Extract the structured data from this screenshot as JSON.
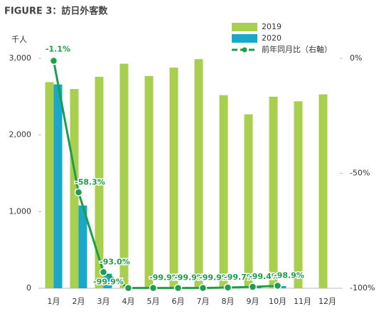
{
  "chart_data": {
    "type": "bar",
    "title": "FIGURE 3：訪日外客数",
    "y_label": "千人",
    "categories": [
      "1月",
      "2月",
      "3月",
      "4月",
      "5月",
      "6月",
      "7月",
      "8月",
      "9月",
      "10月",
      "11月",
      "12月"
    ],
    "series": [
      {
        "name": "2019",
        "color": "#a9cf4f",
        "values": [
          2690,
          2600,
          2760,
          2930,
          2770,
          2880,
          2990,
          2520,
          2270,
          2500,
          2440,
          2530
        ]
      },
      {
        "name": "2020",
        "color": "#1aa7c9",
        "values": [
          2660,
          1080,
          190,
          3,
          2,
          3,
          4,
          9,
          14,
          28,
          null,
          null
        ]
      },
      {
        "name": "前年同月比（右軸）",
        "type": "line",
        "axis": "y2",
        "color": "#1e9d4b",
        "values": [
          -1.1,
          -58.3,
          -93.0,
          -99.9,
          -99.9,
          -99.9,
          -99.9,
          -99.7,
          -99.4,
          -98.9,
          null,
          null
        ],
        "value_labels": [
          "-1.1%",
          "-58.3%",
          "-93.0%",
          "-99.9%",
          "-99.9%",
          "-99.9%",
          "-99.9%",
          "-99.7%",
          "-99.4%",
          "-98.9%",
          null,
          null
        ]
      }
    ],
    "ylim": [
      0,
      3000
    ],
    "yticks": [
      0,
      {
        "value": 1000,
        "label": "1,000"
      },
      {
        "value": 2000,
        "label": "2,000"
      },
      {
        "value": 3000,
        "label": "3,000"
      }
    ],
    "y2lim": [
      -100,
      0
    ],
    "y2ticks": [
      {
        "value": 0,
        "label": "0%"
      },
      {
        "value": -50,
        "label": "-50%"
      },
      {
        "value": -100,
        "label": "-100%"
      }
    ],
    "grid": false
  }
}
